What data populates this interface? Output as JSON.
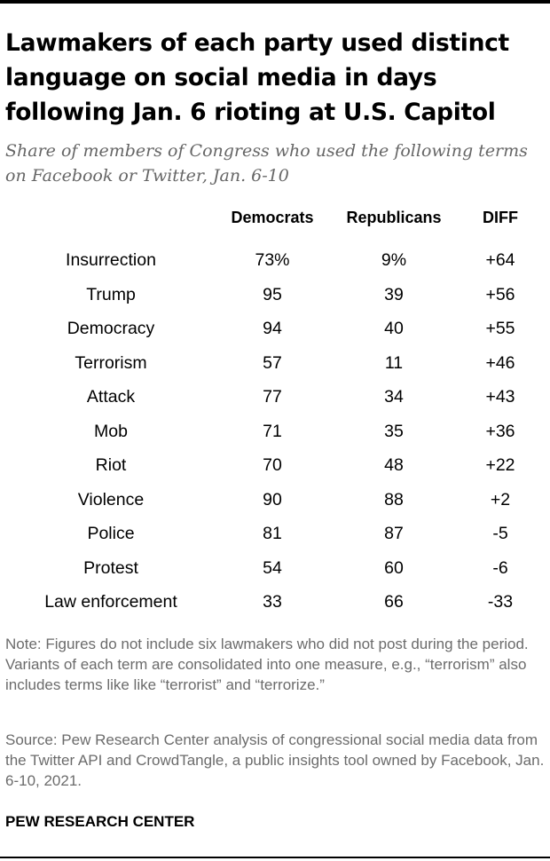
{
  "title": "Lawmakers of each party used distinct language on social media in days following Jan. 6 rioting at U.S. Capitol",
  "subtitle": "Share of members of Congress who used the following terms on Facebook or Twitter, Jan. 6-10",
  "note": "Note: Figures do not include six lawmakers who did not post during the period. Variants of each term are consolidated into one measure, e.g., “terrorism” also includes terms like like “terrorist” and “terrorize.”",
  "source": "Source: Pew Research Center analysis of congressional social media data from the Twitter API and CrowdTangle, a public insights tool owned by Facebook, Jan. 6-10, 2021.",
  "brand": "PEW RESEARCH CENTER",
  "chart_data": {
    "type": "table",
    "columns": [
      "Democrats",
      "Republicans",
      "DIFF"
    ],
    "rows": [
      {
        "term": "Insurrection",
        "democrats": "73%",
        "republicans": "9%",
        "diff": "+64"
      },
      {
        "term": "Trump",
        "democrats": "95",
        "republicans": "39",
        "diff": "+56"
      },
      {
        "term": "Democracy",
        "democrats": "94",
        "republicans": "40",
        "diff": "+55"
      },
      {
        "term": "Terrorism",
        "democrats": "57",
        "republicans": "11",
        "diff": "+46"
      },
      {
        "term": "Attack",
        "democrats": "77",
        "republicans": "34",
        "diff": "+43"
      },
      {
        "term": "Mob",
        "democrats": "71",
        "republicans": "35",
        "diff": "+36"
      },
      {
        "term": "Riot",
        "democrats": "70",
        "republicans": "48",
        "diff": "+22"
      },
      {
        "term": "Violence",
        "democrats": "90",
        "republicans": "88",
        "diff": "+2"
      },
      {
        "term": "Police",
        "democrats": "81",
        "republicans": "87",
        "diff": "-5"
      },
      {
        "term": "Protest",
        "democrats": "54",
        "republicans": "60",
        "diff": "-6"
      },
      {
        "term": "Law enforcement",
        "democrats": "33",
        "republicans": "66",
        "diff": "-33"
      }
    ]
  }
}
